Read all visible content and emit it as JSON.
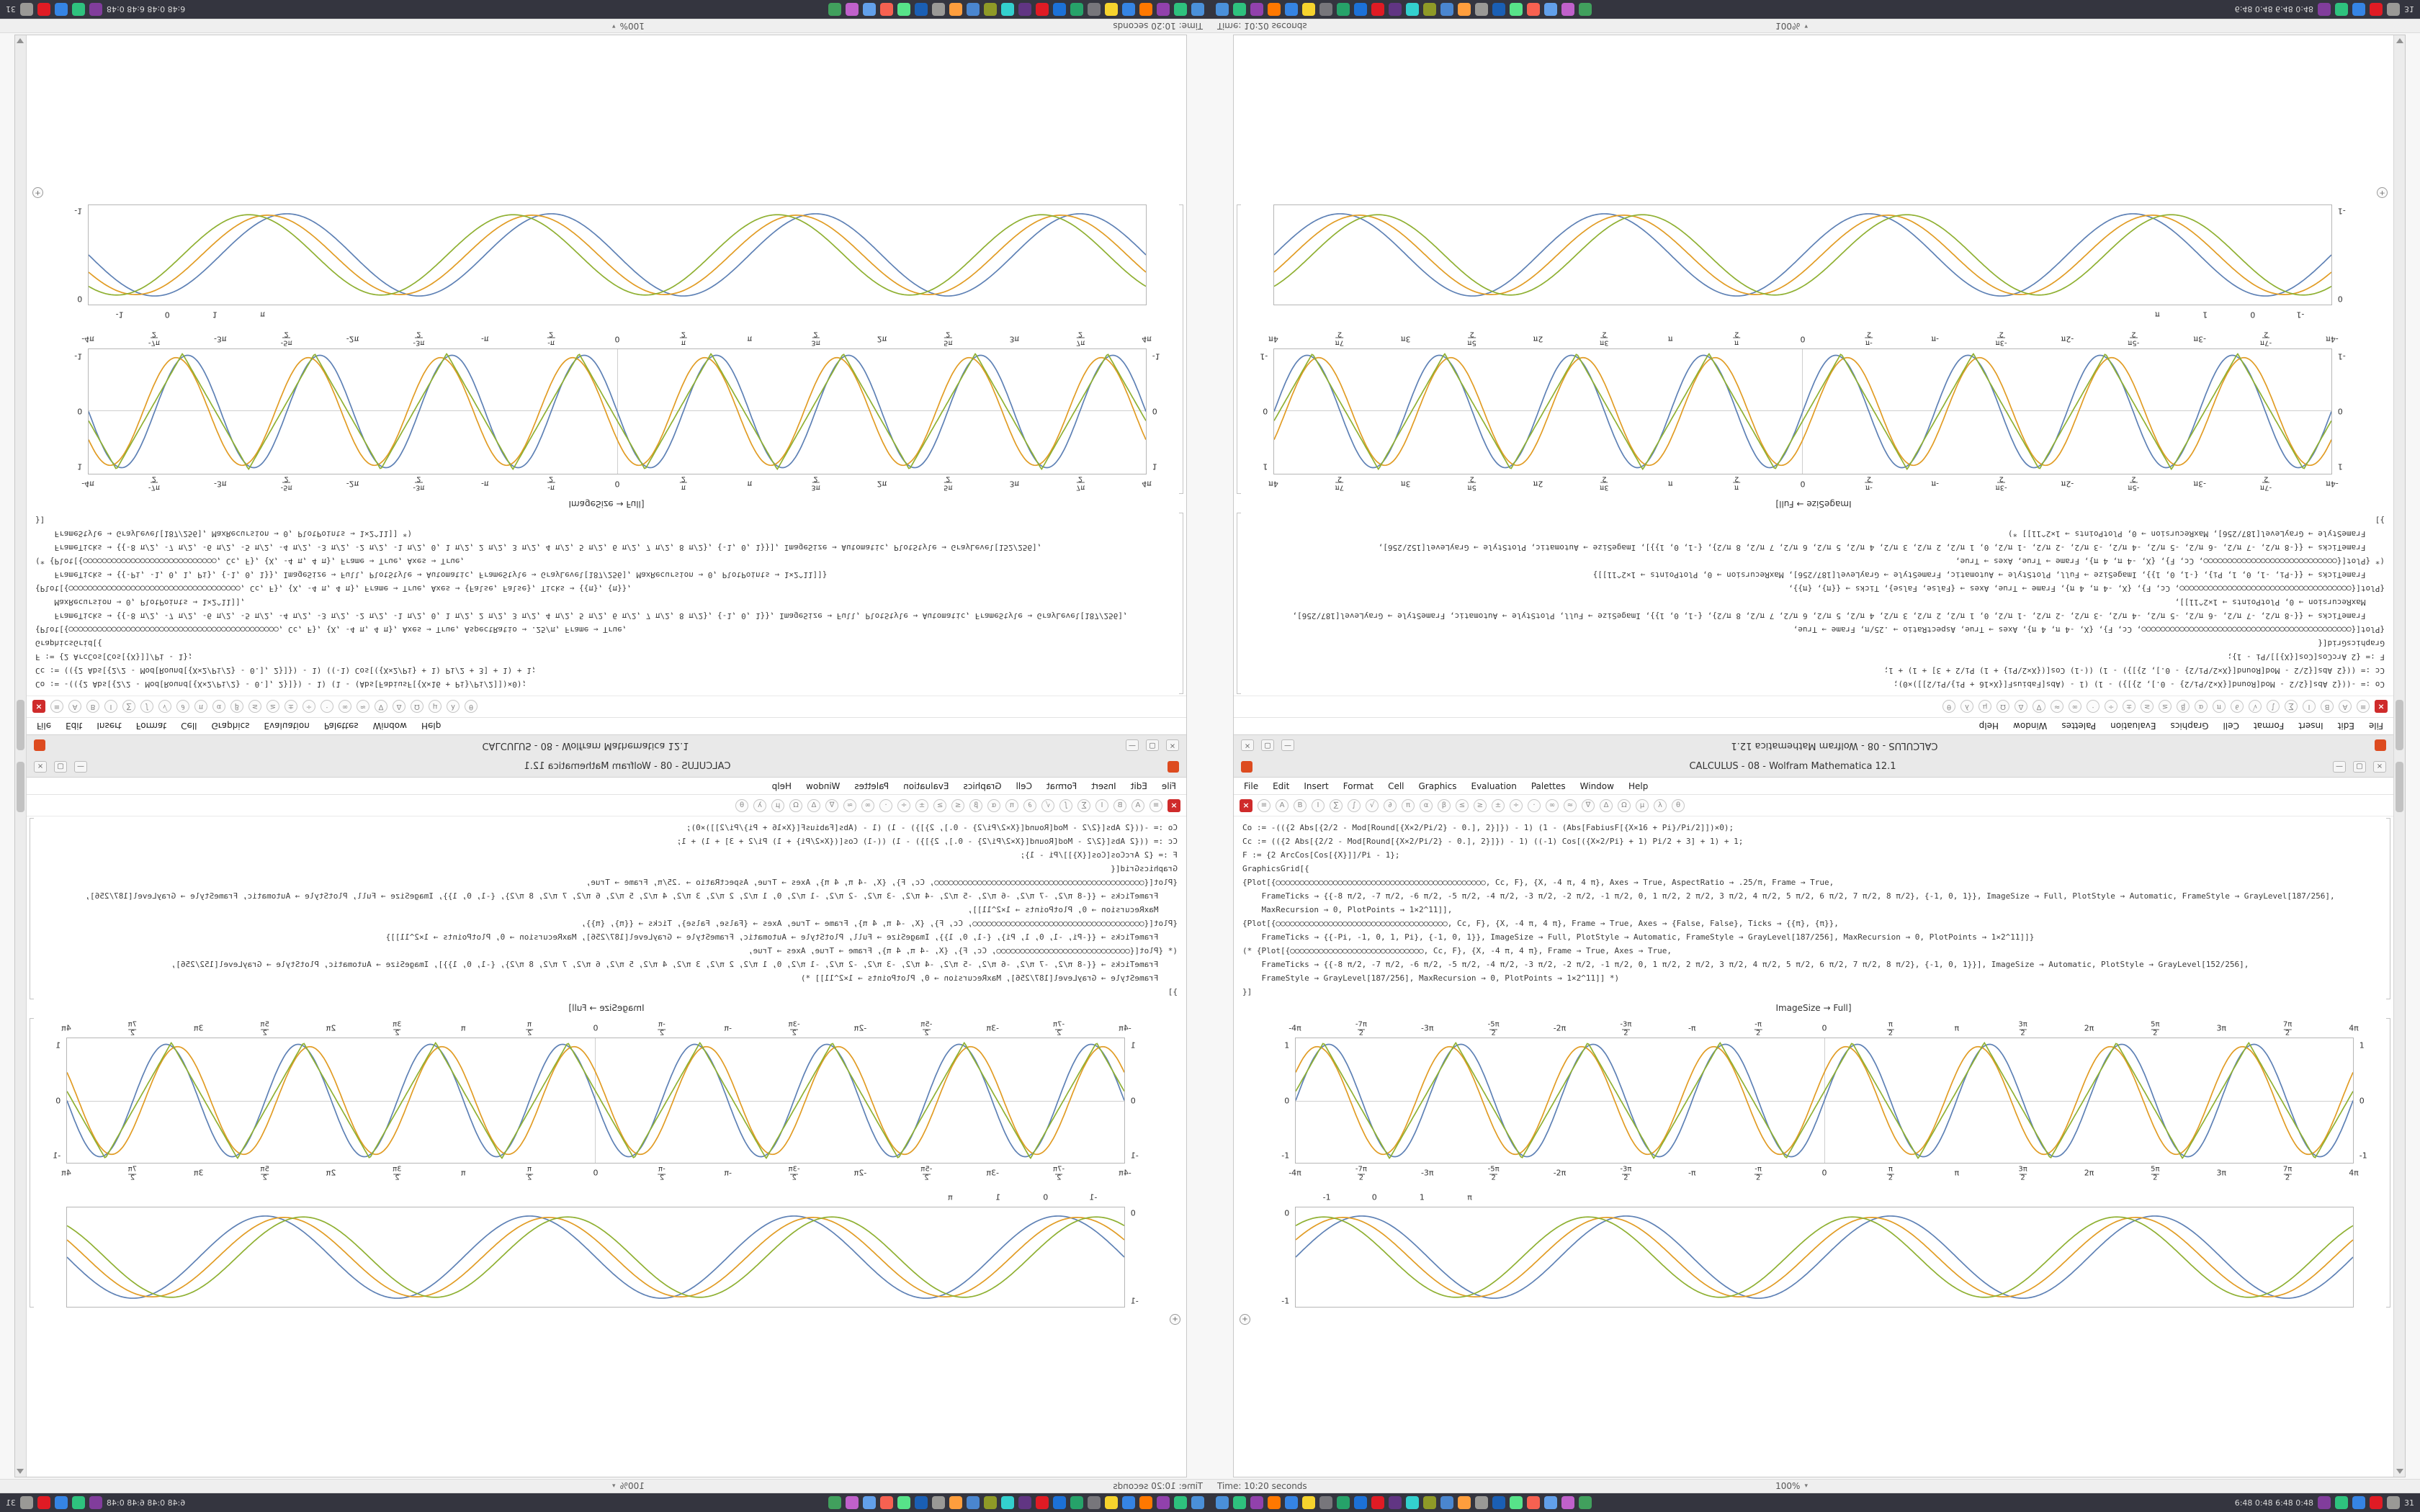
{
  "window": {
    "title": "CALCULUS - 08 - Wolfram Mathematica 12.1",
    "controls": {
      "min": "—",
      "max": "▢",
      "close": "×"
    },
    "menu": [
      "File",
      "Edit",
      "Insert",
      "Format",
      "Cell",
      "Graphics",
      "Evaluation",
      "Palettes",
      "Window",
      "Help"
    ],
    "toolbar": {
      "abort_label": "×",
      "icons": [
        "≡",
        "A",
        "B",
        "I",
        "∑",
        "∫",
        "√",
        "∂",
        "π",
        "α",
        "β",
        "≤",
        "≥",
        "±",
        "÷",
        "·",
        "∞",
        "≈",
        "∇",
        "Δ",
        "Ω",
        "μ",
        "λ",
        "θ"
      ]
    },
    "code_lines": [
      "Co := -(({2 Abs[{2/2 - Mod[Round[{X×2/Pi/2} - 0.], 2}]}) - 1) (1 - (Abs[FabiusF[{X×16 + Pi}/Pi/2]])×0);",
      "Cc := (({2 Abs[{2/2 - Mod[Round[{X×2/Pi/2} - 0.], 2}]}) - 1) ((-1) Cos[({X×2/Pi} + 1) Pi/2 + 3] + 1) + 1;",
      "F := {2 ArcCos[Cos[{X}]]/Pi - 1};",
      "GraphicsGrid[{",
      "{Plot[{○○○○○○○○○○○○○○○○○○○○○○○○○○○○○○○○○○○○○○○○○○○○, Cc, F}, {X, -4 π, 4 π}, Axes → True, AspectRatio → .25/π, Frame → True,",
      "    FrameTicks → {{-8 π/2, -7 π/2, -6 π/2, -5 π/2, -4 π/2, -3 π/2, -2 π/2, -1 π/2, 0, 1 π/2, 2 π/2, 3 π/2, 4 π/2, 5 π/2, 6 π/2, 7 π/2, 8 π/2}, {-1, 0, 1}}, ImageSize → Full, PlotStyle → Automatic, FrameStyle → GrayLevel[187/256],",
      "    MaxRecursion → 0, PlotPoints → 1×2^11]],",
      "{Plot[{○○○○○○○○○○○○○○○○○○○○○○○○○○○○○○○○○○○○, Cc, F}, {X, -4 π, 4 π}, Frame → True, Axes → {False, False}, Ticks → {{π}, {π}},",
      "    FrameTicks → {{-Pi, -1, 0, 1, Pi}, {-1, 0, 1}}, ImageSize → Full, PlotStyle → Automatic, FrameStyle → GrayLevel[187/256], MaxRecursion → 0, PlotPoints → 1×2^11]]}",
      "(* {Plot[{○○○○○○○○○○○○○○○○○○○○○○○○○○○○, Cc, F}, {X, -4 π, 4 π}, Frame → True, Axes → True,",
      "    FrameTicks → {{-8 π/2, -7 π/2, -6 π/2, -5 π/2, -4 π/2, -3 π/2, -2 π/2, -1 π/2, 0, 1 π/2, 2 π/2, 3 π/2, 4 π/2, 5 π/2, 6 π/2, 7 π/2, 8 π/2}, {-1, 0, 1}}], ImageSize → Automatic, PlotStyle → GrayLevel[152/256],",
      "    FrameStyle → GrayLevel[187/256], MaxRecursion → 0, PlotPoints → 1×2^11]] *)",
      "}]"
    ],
    "caption": "ImageSize → Full]",
    "zoom_button": "+"
  },
  "status": {
    "time_label": "Time: 10:20 seconds",
    "zoom": "100%",
    "zoom_caret": "▾"
  },
  "taskbar": {
    "icons_main": [
      "#4a90d9",
      "#2ec27e",
      "#9141ac",
      "#ff7800",
      "#3584e4",
      "#f6d32d",
      "#77767b",
      "#26a269",
      "#1c71d8",
      "#e01b24",
      "#613583",
      "#33d0ce",
      "#8f9a27",
      "#4a86cf",
      "#ff9e3d",
      "#9a9996",
      "#1a5fb4",
      "#57e389",
      "#f66151",
      "#62a0ea",
      "#c061cb",
      "#41a05d"
    ],
    "icons_right": [
      "#813d9c",
      "#2ec27e",
      "#3584e4",
      "#e01b24",
      "#9a9996"
    ],
    "tray_text": "6:48  0:48  6:48  0:48",
    "tray_end": "31"
  },
  "chart_data": [
    {
      "type": "line",
      "title": "",
      "x_range": [
        -12.566,
        12.566
      ],
      "x_range_label": [
        "-4π",
        "4π"
      ],
      "ylim": [
        -1,
        1
      ],
      "grid": false,
      "axes": true,
      "x_ticks": [
        "-4π",
        "-7π/2",
        "-3π",
        "-5π/2",
        "-2π",
        "-3π/2",
        "-π",
        "-π/2",
        "0",
        "π/2",
        "π",
        "3π/2",
        "2π",
        "5π/2",
        "3π",
        "7π/2",
        "4π"
      ],
      "y_ticks": [
        "1",
        "0",
        "-1"
      ],
      "series": [
        {
          "name": "Co",
          "color": "#5e81b5",
          "shape": "sine",
          "cycles": 8,
          "phase": 0.0,
          "amp": 0.96
        },
        {
          "name": "Cc",
          "color": "#e19c24",
          "shape": "sine",
          "cycles": 8,
          "phase": 0.55,
          "amp": 0.92
        },
        {
          "name": "F",
          "color": "#8fb032",
          "shape": "triangle",
          "cycles": 8,
          "phase": 0.25,
          "amp": 0.99
        }
      ]
    },
    {
      "type": "line",
      "title": "",
      "x_range": [
        -12.566,
        12.566
      ],
      "x_range_label": [
        "-4π",
        "4π"
      ],
      "ylim": [
        -1,
        1
      ],
      "grid": false,
      "axes": false,
      "x_ticks": [
        {
          "label": "-1",
          "pos": 3
        },
        {
          "label": "0",
          "pos": 7.5
        },
        {
          "label": "1",
          "pos": 12
        },
        {
          "label": "π",
          "pos": 16.5
        }
      ],
      "y_ticks": [
        "0",
        "-1"
      ],
      "series": [
        {
          "name": "Co",
          "color": "#5e81b5",
          "shape": "sine",
          "cycles": 4,
          "phase": 0.0,
          "amp": 0.88
        },
        {
          "name": "Cc",
          "color": "#e19c24",
          "shape": "sine",
          "cycles": 4,
          "phase": 0.45,
          "amp": 0.85
        },
        {
          "name": "F",
          "color": "#8fb032",
          "shape": "sine",
          "cycles": 4,
          "phase": 0.9,
          "amp": 0.86
        }
      ]
    }
  ]
}
